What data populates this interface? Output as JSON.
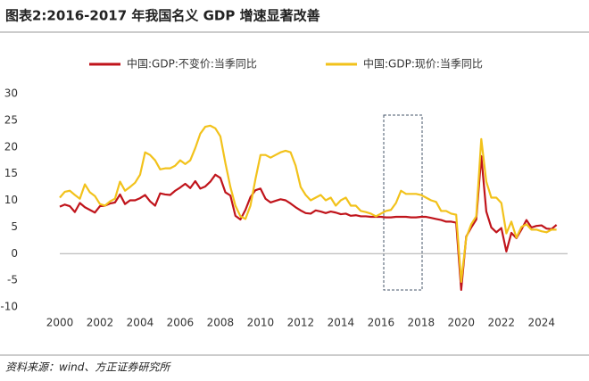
{
  "chart_data": {
    "type": "line",
    "title": "图表2:2016-2017 年我国名义 GDP 增速显著改善",
    "source": "资料来源：wind、方正证券研究所",
    "x": [
      2000,
      2000.25,
      2000.5,
      2000.75,
      2001,
      2001.25,
      2001.5,
      2001.75,
      2002,
      2002.25,
      2002.5,
      2002.75,
      2003,
      2003.25,
      2003.5,
      2003.75,
      2004,
      2004.25,
      2004.5,
      2004.75,
      2005,
      2005.25,
      2005.5,
      2005.75,
      2006,
      2006.25,
      2006.5,
      2006.75,
      2007,
      2007.25,
      2007.5,
      2007.75,
      2008,
      2008.25,
      2008.5,
      2008.75,
      2009,
      2009.25,
      2009.5,
      2009.75,
      2010,
      2010.25,
      2010.5,
      2010.75,
      2011,
      2011.25,
      2011.5,
      2011.75,
      2012,
      2012.25,
      2012.5,
      2012.75,
      2013,
      2013.25,
      2013.5,
      2013.75,
      2014,
      2014.25,
      2014.5,
      2014.75,
      2015,
      2015.25,
      2015.5,
      2015.75,
      2016,
      2016.25,
      2016.5,
      2016.75,
      2017,
      2017.25,
      2017.5,
      2017.75,
      2018,
      2018.25,
      2018.5,
      2018.75,
      2019,
      2019.25,
      2019.5,
      2019.75,
      2020,
      2020.25,
      2020.5,
      2020.75,
      2021,
      2021.25,
      2021.5,
      2021.75,
      2022,
      2022.25,
      2022.5,
      2022.75,
      2023,
      2023.25,
      2023.5,
      2023.75,
      2024,
      2024.25,
      2024.5,
      2024.75
    ],
    "series": [
      {
        "name": "中国:GDP:不变价:当季同比",
        "color": "#c0141b",
        "values": [
          8.8,
          9.2,
          8.9,
          7.8,
          9.5,
          8.7,
          8.2,
          7.7,
          8.9,
          9.0,
          9.4,
          9.6,
          11.1,
          9.3,
          10.0,
          10.0,
          10.4,
          11.0,
          9.8,
          9.0,
          11.3,
          11.1,
          11.0,
          11.8,
          12.4,
          13.1,
          12.3,
          13.6,
          12.2,
          12.6,
          13.5,
          14.8,
          14.2,
          11.5,
          10.9,
          7.1,
          6.4,
          8.2,
          10.6,
          11.9,
          12.2,
          10.3,
          9.6,
          9.9,
          10.2,
          10.0,
          9.4,
          8.7,
          8.1,
          7.6,
          7.5,
          8.1,
          7.9,
          7.6,
          7.9,
          7.7,
          7.4,
          7.5,
          7.1,
          7.2,
          7.0,
          7.0,
          6.9,
          6.9,
          6.9,
          6.8,
          6.8,
          6.9,
          6.9,
          6.9,
          6.8,
          6.8,
          6.9,
          6.9,
          6.7,
          6.5,
          6.3,
          6.0,
          6.0,
          5.8,
          -6.8,
          3.2,
          4.9,
          6.4,
          18.3,
          7.9,
          4.9,
          4.0,
          4.8,
          0.4,
          3.9,
          2.9,
          4.5,
          6.3,
          4.9,
          5.2,
          5.3,
          4.7,
          4.6,
          5.4
        ]
      },
      {
        "name": "中国:GDP:现价:当季同比",
        "color": "#f2c21b",
        "values": [
          10.5,
          11.6,
          11.8,
          11.0,
          10.3,
          13.0,
          11.5,
          10.8,
          9.3,
          9.0,
          9.8,
          10.3,
          13.5,
          11.8,
          12.5,
          13.3,
          14.8,
          19.0,
          18.5,
          17.5,
          15.8,
          16.0,
          16.0,
          16.5,
          17.5,
          16.8,
          17.5,
          19.8,
          22.5,
          23.8,
          24.0,
          23.5,
          22.0,
          17.0,
          12.5,
          9.0,
          7.0,
          6.5,
          9.0,
          14.0,
          18.5,
          18.5,
          18.0,
          18.5,
          19.0,
          19.3,
          19.0,
          16.5,
          12.5,
          11.0,
          10.0,
          10.5,
          11.0,
          10.0,
          10.5,
          9.0,
          10.0,
          10.5,
          9.0,
          9.0,
          8.0,
          7.8,
          7.5,
          7.0,
          7.5,
          8.0,
          8.2,
          9.5,
          11.8,
          11.2,
          11.2,
          11.2,
          11.0,
          10.5,
          10.0,
          9.7,
          8.0,
          8.0,
          7.5,
          7.3,
          -5.3,
          3.0,
          5.5,
          7.0,
          21.5,
          13.5,
          10.5,
          10.5,
          9.5,
          3.8,
          6.0,
          3.0,
          5.0,
          5.5,
          4.5,
          4.5,
          4.2,
          4.0,
          4.5,
          4.5
        ]
      }
    ],
    "xlim": [
      2000,
      2025.3
    ],
    "xticks": [
      2000,
      2002,
      2004,
      2006,
      2008,
      2010,
      2012,
      2014,
      2016,
      2018,
      2020,
      2022,
      2024
    ],
    "ylim": [
      -10,
      30
    ],
    "yticks": [
      -10,
      -5,
      0,
      5,
      10,
      15,
      20,
      25,
      30
    ],
    "grid": false
  }
}
